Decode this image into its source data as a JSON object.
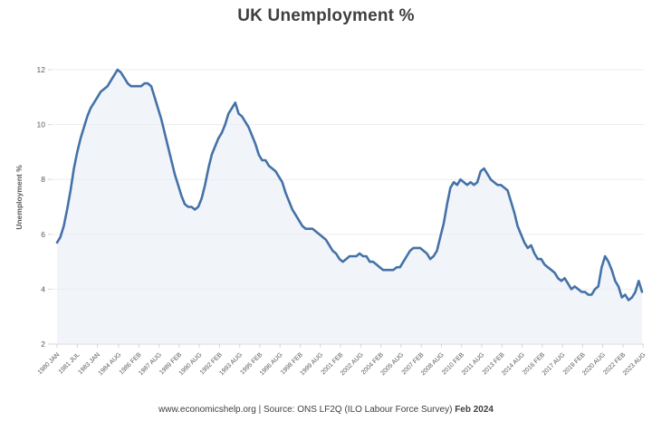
{
  "page": {
    "title": "UK Unemployment %"
  },
  "footer": {
    "text": "www.economicshelp.org | Source: ONS LF2Q (ILO Labour Force Survey)",
    "bold_suffix": "Feb 2024"
  },
  "chart_data": {
    "type": "area",
    "title": "UK Unemployment %",
    "xlabel": "",
    "ylabel": "Unemployment %",
    "ylim": [
      2,
      12
    ],
    "yticks": [
      2,
      4,
      6,
      8,
      10,
      12
    ],
    "grid": "horizontal-light",
    "legend": "none",
    "x_unit": "year (quarterly points)",
    "x0": 1980.0,
    "dx": 0.25,
    "colors": {
      "line": "#4472A8",
      "fill": "#E8EDF5",
      "grid": "#EDEDED",
      "axis": "#D5D5D5",
      "tick_text": "#595959",
      "title_text": "#3F3F3F"
    },
    "series": [
      {
        "name": "UK Unemployment %",
        "values": [
          5.7,
          5.9,
          6.3,
          6.9,
          7.6,
          8.4,
          9.0,
          9.5,
          9.9,
          10.3,
          10.6,
          10.8,
          11.0,
          11.2,
          11.3,
          11.4,
          11.6,
          11.8,
          12.0,
          11.9,
          11.7,
          11.5,
          11.4,
          11.4,
          11.4,
          11.4,
          11.5,
          11.5,
          11.4,
          11.0,
          10.6,
          10.2,
          9.7,
          9.2,
          8.7,
          8.2,
          7.8,
          7.4,
          7.1,
          7.0,
          7.0,
          6.9,
          7.0,
          7.3,
          7.8,
          8.4,
          8.9,
          9.2,
          9.5,
          9.7,
          10.0,
          10.4,
          10.6,
          10.8,
          10.4,
          10.3,
          10.1,
          9.9,
          9.6,
          9.3,
          8.9,
          8.7,
          8.7,
          8.5,
          8.4,
          8.3,
          8.1,
          7.9,
          7.5,
          7.2,
          6.9,
          6.7,
          6.5,
          6.3,
          6.2,
          6.2,
          6.2,
          6.1,
          6.0,
          5.9,
          5.8,
          5.6,
          5.4,
          5.3,
          5.1,
          5.0,
          5.1,
          5.2,
          5.2,
          5.2,
          5.3,
          5.2,
          5.2,
          5.0,
          5.0,
          4.9,
          4.8,
          4.7,
          4.7,
          4.7,
          4.7,
          4.8,
          4.8,
          5.0,
          5.2,
          5.4,
          5.5,
          5.5,
          5.5,
          5.4,
          5.3,
          5.1,
          5.2,
          5.4,
          5.9,
          6.4,
          7.1,
          7.7,
          7.9,
          7.8,
          8.0,
          7.9,
          7.8,
          7.9,
          7.8,
          7.9,
          8.3,
          8.4,
          8.2,
          8.0,
          7.9,
          7.8,
          7.8,
          7.7,
          7.6,
          7.2,
          6.8,
          6.3,
          6.0,
          5.7,
          5.5,
          5.6,
          5.3,
          5.1,
          5.1,
          4.9,
          4.8,
          4.7,
          4.6,
          4.4,
          4.3,
          4.4,
          4.2,
          4.0,
          4.1,
          4.0,
          3.9,
          3.9,
          3.8,
          3.8,
          4.0,
          4.1,
          4.8,
          5.2,
          5.0,
          4.7,
          4.3,
          4.1,
          3.7,
          3.8,
          3.6,
          3.7,
          3.9,
          4.3,
          3.9
        ]
      }
    ],
    "xticks": [
      {
        "label": "1980 JAN",
        "year": 1980.0
      },
      {
        "label": "1981 JUL",
        "year": 1981.5
      },
      {
        "label": "1983 JAN",
        "year": 1983.0
      },
      {
        "label": "1984 AUG",
        "year": 1984.58
      },
      {
        "label": "1986 FEB",
        "year": 1986.08
      },
      {
        "label": "1987 AUG",
        "year": 1987.58
      },
      {
        "label": "1989 FEB",
        "year": 1989.08
      },
      {
        "label": "1990 AUG",
        "year": 1990.58
      },
      {
        "label": "1992 FEB",
        "year": 1992.08
      },
      {
        "label": "1993 AUG",
        "year": 1993.58
      },
      {
        "label": "1995 FEB",
        "year": 1995.08
      },
      {
        "label": "1996 AUG",
        "year": 1996.58
      },
      {
        "label": "1998 FEB",
        "year": 1998.08
      },
      {
        "label": "1999 AUG",
        "year": 1999.58
      },
      {
        "label": "2001 FEB",
        "year": 2001.08
      },
      {
        "label": "2002 AUG",
        "year": 2002.58
      },
      {
        "label": "2004 FEB",
        "year": 2004.08
      },
      {
        "label": "2005 AUG",
        "year": 2005.58
      },
      {
        "label": "2007 FEB",
        "year": 2007.08
      },
      {
        "label": "2008 AUG",
        "year": 2008.58
      },
      {
        "label": "2010 FEB",
        "year": 2010.08
      },
      {
        "label": "2011 AUG",
        "year": 2011.58
      },
      {
        "label": "2013 FEB",
        "year": 2013.08
      },
      {
        "label": "2014 AUG",
        "year": 2014.58
      },
      {
        "label": "2016 FEB",
        "year": 2016.08
      },
      {
        "label": "2017 AUG",
        "year": 2017.58
      },
      {
        "label": "2019 FEB",
        "year": 2019.08
      },
      {
        "label": "2020 AUG",
        "year": 2020.58
      },
      {
        "label": "2022 FEB",
        "year": 2022.08
      },
      {
        "label": "2023 AUG",
        "year": 2023.58
      }
    ]
  }
}
